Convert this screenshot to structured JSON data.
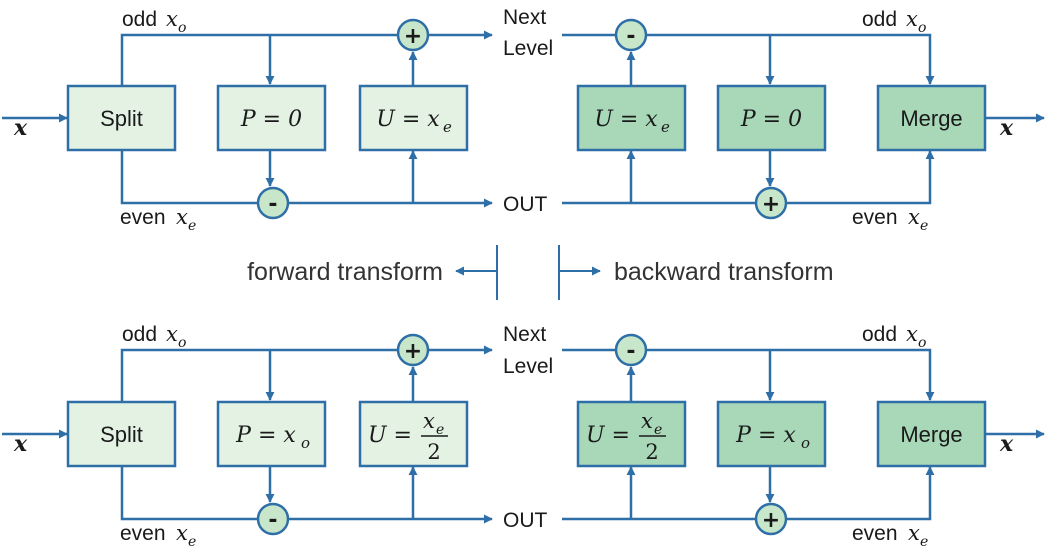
{
  "colors": {
    "line": "#2E6FA7",
    "box_light_fill": "#E3F2E3",
    "box_dark_fill": "#A8D8B8",
    "node_fill": "#C8E6C9"
  },
  "labels": {
    "odd": "odd",
    "even": "even",
    "next": "Next",
    "level": "Level",
    "out": "OUT",
    "x": "x",
    "sub_o": "o",
    "sub_e": "e",
    "forward": "forward transform",
    "backward": "backward transform"
  },
  "boxes": {
    "split": "Split",
    "merge": "Merge",
    "p_zero": "P = 0",
    "u_xe": "U = x",
    "p_xo": "P = x",
    "u_half_left": "U =",
    "u_half_num": "x",
    "u_half_den": "2"
  },
  "operators": {
    "plus": "+",
    "minus": "-"
  }
}
